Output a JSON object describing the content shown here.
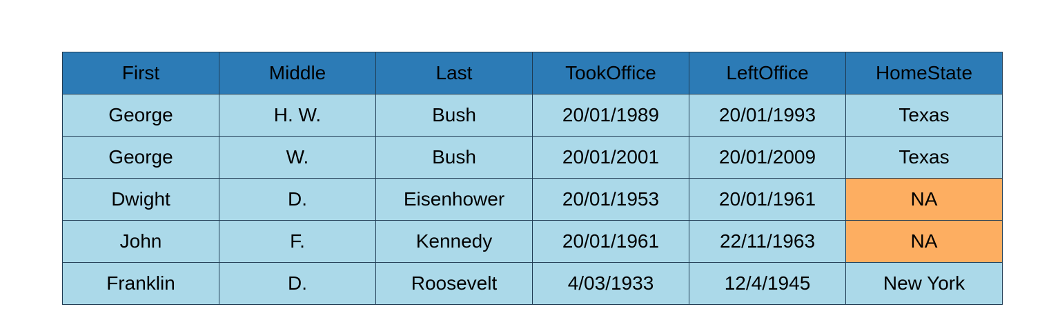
{
  "chart_data": {
    "type": "table",
    "columns": [
      "First",
      "Middle",
      "Last",
      "TookOffice",
      "LeftOffice",
      "HomeState"
    ],
    "rows": [
      [
        "George",
        "H. W.",
        "Bush",
        "20/01/1989",
        "20/01/1993",
        "Texas"
      ],
      [
        "George",
        "W.",
        "Bush",
        "20/01/2001",
        "20/01/2009",
        "Texas"
      ],
      [
        "Dwight",
        "D.",
        "Eisenhower",
        "20/01/1953",
        "20/01/1961",
        "NA"
      ],
      [
        "John",
        "F.",
        "Kennedy",
        "20/01/1961",
        "22/11/1963",
        "NA"
      ],
      [
        "Franklin",
        "D.",
        "Roosevelt",
        "4/03/1933",
        "12/4/1945",
        "New York"
      ]
    ],
    "highlight_value": "NA"
  },
  "colors": {
    "header_fill": "#2c7bb6",
    "cell_fill": "#abd9e9",
    "missing_fill": "#fdae61",
    "border": "#1f3b53"
  }
}
